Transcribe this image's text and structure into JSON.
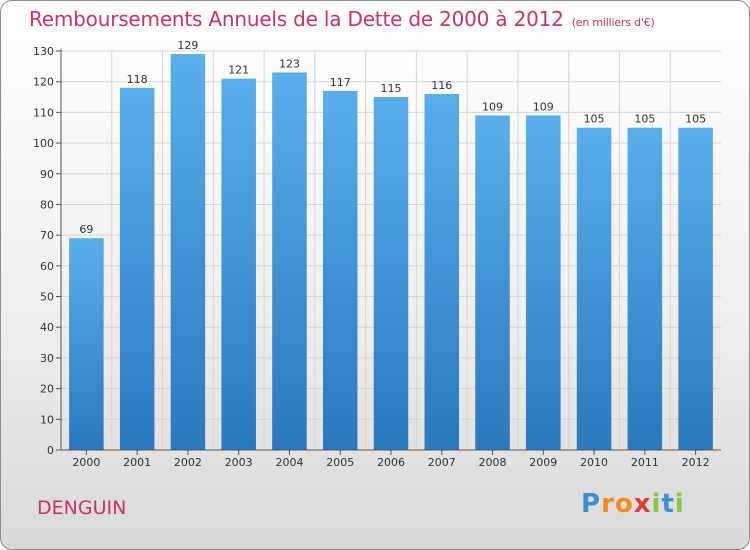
{
  "title": "Remboursements Annuels de la Dette de 2000 à 2012",
  "subtitle": "(en milliers d'€)",
  "commune": "DENGUIN",
  "logo": {
    "letters": [
      "P",
      "r",
      "o",
      "x",
      "i",
      "t",
      "i"
    ],
    "colors": [
      "#3d8fd6",
      "#f28c1c",
      "#f28c1c",
      "#e03b3b",
      "#8cc63f",
      "#3d8fd6",
      "#8cc63f"
    ]
  },
  "colors": {
    "title": "#c8336b",
    "bar_top": "#5aaeea",
    "bar_bottom": "#2b78bd",
    "grid": "#d4d4d4"
  },
  "chart_data": {
    "type": "bar",
    "title": "Remboursements Annuels de la Dette de 2000 à 2012",
    "subtitle": "(en milliers d'€)",
    "categories": [
      "2000",
      "2001",
      "2002",
      "2003",
      "2004",
      "2005",
      "2006",
      "2007",
      "2008",
      "2009",
      "2010",
      "2011",
      "2012"
    ],
    "values": [
      69,
      118,
      129,
      121,
      123,
      117,
      115,
      116,
      109,
      109,
      105,
      105,
      105
    ],
    "ylim": [
      0,
      130
    ],
    "yticks": [
      0,
      10,
      20,
      30,
      40,
      50,
      60,
      70,
      80,
      90,
      100,
      110,
      120,
      130
    ],
    "grid": true,
    "data_labels": true,
    "xlabel": "",
    "ylabel": ""
  }
}
